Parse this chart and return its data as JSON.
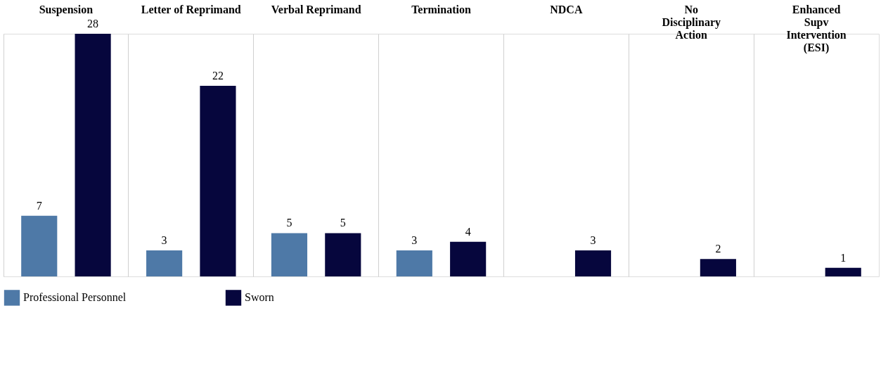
{
  "chart_data": {
    "type": "bar",
    "categories": [
      "Suspension",
      "Letter of Reprimand",
      "Verbal Reprimand",
      "Termination",
      "NDCA",
      "No Disciplinary Action",
      "Enhanced Supv Intervention (ESI)"
    ],
    "series": [
      {
        "name": "Professional Personnel",
        "color": "#4e79a7",
        "values": [
          7,
          3,
          5,
          3,
          null,
          null,
          null
        ]
      },
      {
        "name": "Sworn",
        "color": "#06063d",
        "values": [
          28,
          22,
          5,
          4,
          3,
          2,
          1
        ]
      }
    ],
    "data_labels": true,
    "grid": "x",
    "legend": "bottom"
  }
}
